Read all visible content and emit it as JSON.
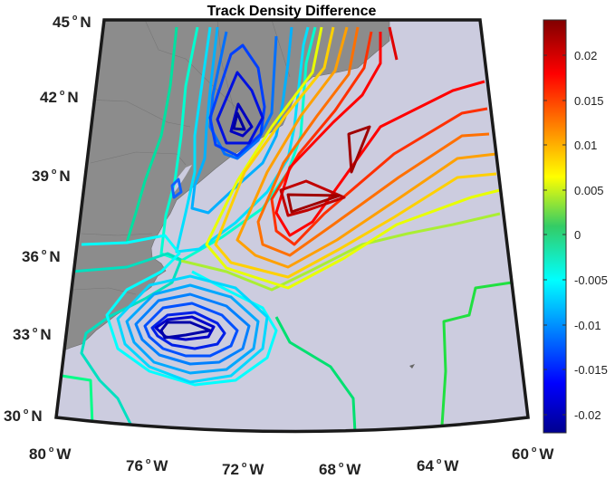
{
  "title": "Track Density Difference",
  "lat_labels": [
    {
      "deg": "45",
      "hemi": "N"
    },
    {
      "deg": "42",
      "hemi": "N"
    },
    {
      "deg": "39",
      "hemi": "N"
    },
    {
      "deg": "36",
      "hemi": "N"
    },
    {
      "deg": "33",
      "hemi": "N"
    },
    {
      "deg": "30",
      "hemi": "N"
    }
  ],
  "lon_labels": [
    {
      "deg": "80",
      "hemi": "W"
    },
    {
      "deg": "76",
      "hemi": "W"
    },
    {
      "deg": "72",
      "hemi": "W"
    },
    {
      "deg": "68",
      "hemi": "W"
    },
    {
      "deg": "64",
      "hemi": "W"
    },
    {
      "deg": "60",
      "hemi": "W"
    }
  ],
  "colorbar": {
    "ticks": [
      "0.02",
      "0.015",
      "0.01",
      "0.005",
      "0",
      "-0.005",
      "-0.01",
      "-0.015",
      "-0.02"
    ],
    "colormap": "jet",
    "range": [
      -0.022,
      0.024
    ]
  },
  "colors": {
    "ocean": "#ccccdf",
    "land": "#8c8c8c",
    "border": "#1a1a1a"
  }
}
